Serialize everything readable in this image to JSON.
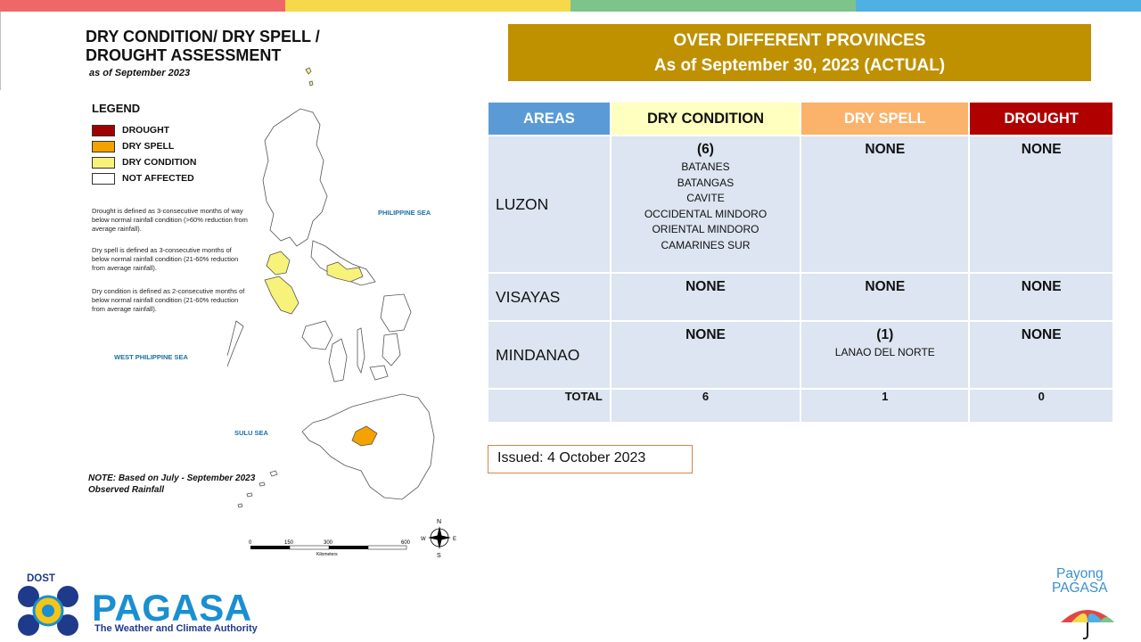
{
  "colors": {
    "top_bar": [
      "#f06767",
      "#f5d94a",
      "#7cc48a",
      "#4fb0e3"
    ],
    "banner": "#bf9000",
    "areas_header": "#5b9bd5",
    "dry_condition": "#ffffc0",
    "dry_spell": "#fbb26a",
    "drought": "#b00000",
    "row_bg": "#dce5f1",
    "swatch_drought": "#a00000",
    "swatch_dry_spell": "#f3a200",
    "swatch_dry_condition": "#f7f27a",
    "swatch_not_affected": "#ffffff"
  },
  "map": {
    "title_line1": "DRY CONDITION/ DRY SPELL /",
    "title_line2": "DROUGHT ASSESSMENT",
    "subtitle": "as of September 2023",
    "legend_title": "LEGEND",
    "legend": [
      {
        "label": "DROUGHT",
        "color": "#a00000"
      },
      {
        "label": "DRY SPELL",
        "color": "#f3a200"
      },
      {
        "label": "DRY CONDITION",
        "color": "#f7f27a"
      },
      {
        "label": "NOT AFFECTED",
        "color": "#ffffff"
      }
    ],
    "def_drought": "Drought is defined as 3-consecutive months of way below normal rainfall condition (>60% reduction from average rainfall).",
    "def_dry_spell": "Dry spell is defined as 3-consecutive months of below normal rainfall condition (21-60% reduction from average rainfall).",
    "def_dry_condition": "Dry condition is defined as 2-consecutive months of below normal rainfall condition (21-60% reduction from average rainfall).",
    "sea_philippine": "PHILIPPINE SEA",
    "sea_west": "WEST PHILIPPINE SEA",
    "sea_sulu": "SULU SEA",
    "note_line1": "NOTE: Based on July - September 2023",
    "note_line2": "Observed Rainfall",
    "scale_ticks": [
      "0",
      "150",
      "300",
      "600"
    ],
    "scale_unit": "Kilometers",
    "compass": {
      "n": "N",
      "s": "S",
      "e": "E",
      "w": "W"
    }
  },
  "banner": {
    "line1": "OVER DIFFERENT PROVINCES",
    "line2": "As of September 30, 2023 (ACTUAL)"
  },
  "table": {
    "headers": [
      "AREAS",
      "DRY CONDITION",
      "DRY SPELL",
      "DROUGHT"
    ],
    "rows": [
      {
        "area": "LUZON",
        "dry_condition_count": "(6)",
        "dry_condition_provinces": [
          "BATANES",
          "BATANGAS",
          "CAVITE",
          "OCCIDENTAL MINDORO",
          "ORIENTAL MINDORO",
          "CAMARINES SUR"
        ],
        "dry_spell": "NONE",
        "drought": "NONE"
      },
      {
        "area": "VISAYAS",
        "dry_condition_count": "NONE",
        "dry_spell": "NONE",
        "drought": "NONE"
      },
      {
        "area": "MINDANAO",
        "dry_condition_count": "NONE",
        "dry_spell_count": "(1)",
        "dry_spell_provinces": [
          "LANAO DEL NORTE"
        ],
        "drought": "NONE"
      }
    ],
    "total": {
      "label": "TOTAL",
      "dry_condition": "6",
      "dry_spell": "1",
      "drought": "0"
    }
  },
  "issued": "Issued: 4 October 2023",
  "logos": {
    "dost": "DOST",
    "pagasa": "PAGASA",
    "pagasa_tagline": "The Weather and Climate Authority",
    "payong_line1": "Payong",
    "payong_line2": "PAGASA"
  }
}
